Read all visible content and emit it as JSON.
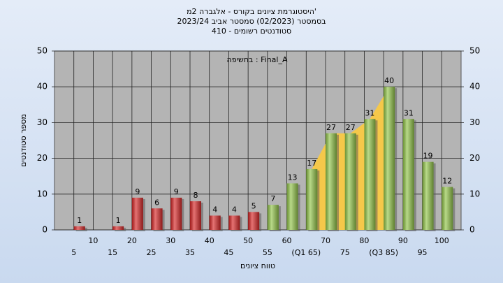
{
  "chart_data": {
    "type": "bar",
    "title": [
      "היסטוגרמת ציונים בקורס - אלגברה 2מ'",
      "בסמסטר  (02/2023)  סמסטר אביב 2023/24",
      "סטודנטים רשומים - 410"
    ],
    "annotation": "בחשיפה : Final_A",
    "x_label": "טווח ציונים",
    "y_label": "מספר סטודנטים",
    "categories": [
      "5",
      "10",
      "15",
      "20",
      "25",
      "30",
      "35",
      "40",
      "45",
      "50",
      "55",
      "60",
      "(Q1 65)",
      "70",
      "75",
      "80",
      "(Q3 85)",
      "90",
      "95",
      "100"
    ],
    "values": [
      1,
      0,
      1,
      9,
      6,
      9,
      8,
      4,
      4,
      5,
      7,
      13,
      17,
      27,
      27,
      31,
      40,
      31,
      19,
      12
    ],
    "colors": [
      "#d82828",
      "#d82828",
      "#d82828",
      "#d82828",
      "#d82828",
      "#d82828",
      "#d82828",
      "#d82828",
      "#d82828",
      "#d82828",
      "#93c64a",
      "#93c64a",
      "#93c64a",
      "#93c64a",
      "#93c64a",
      "#93c64a",
      "#93c64a",
      "#93c64a",
      "#93c64a",
      "#93c64a"
    ],
    "quartile_color": "#f5c84a",
    "ylim": [
      0,
      50
    ],
    "yticks": [
      0,
      10,
      20,
      30,
      40,
      50
    ],
    "grid": true
  }
}
